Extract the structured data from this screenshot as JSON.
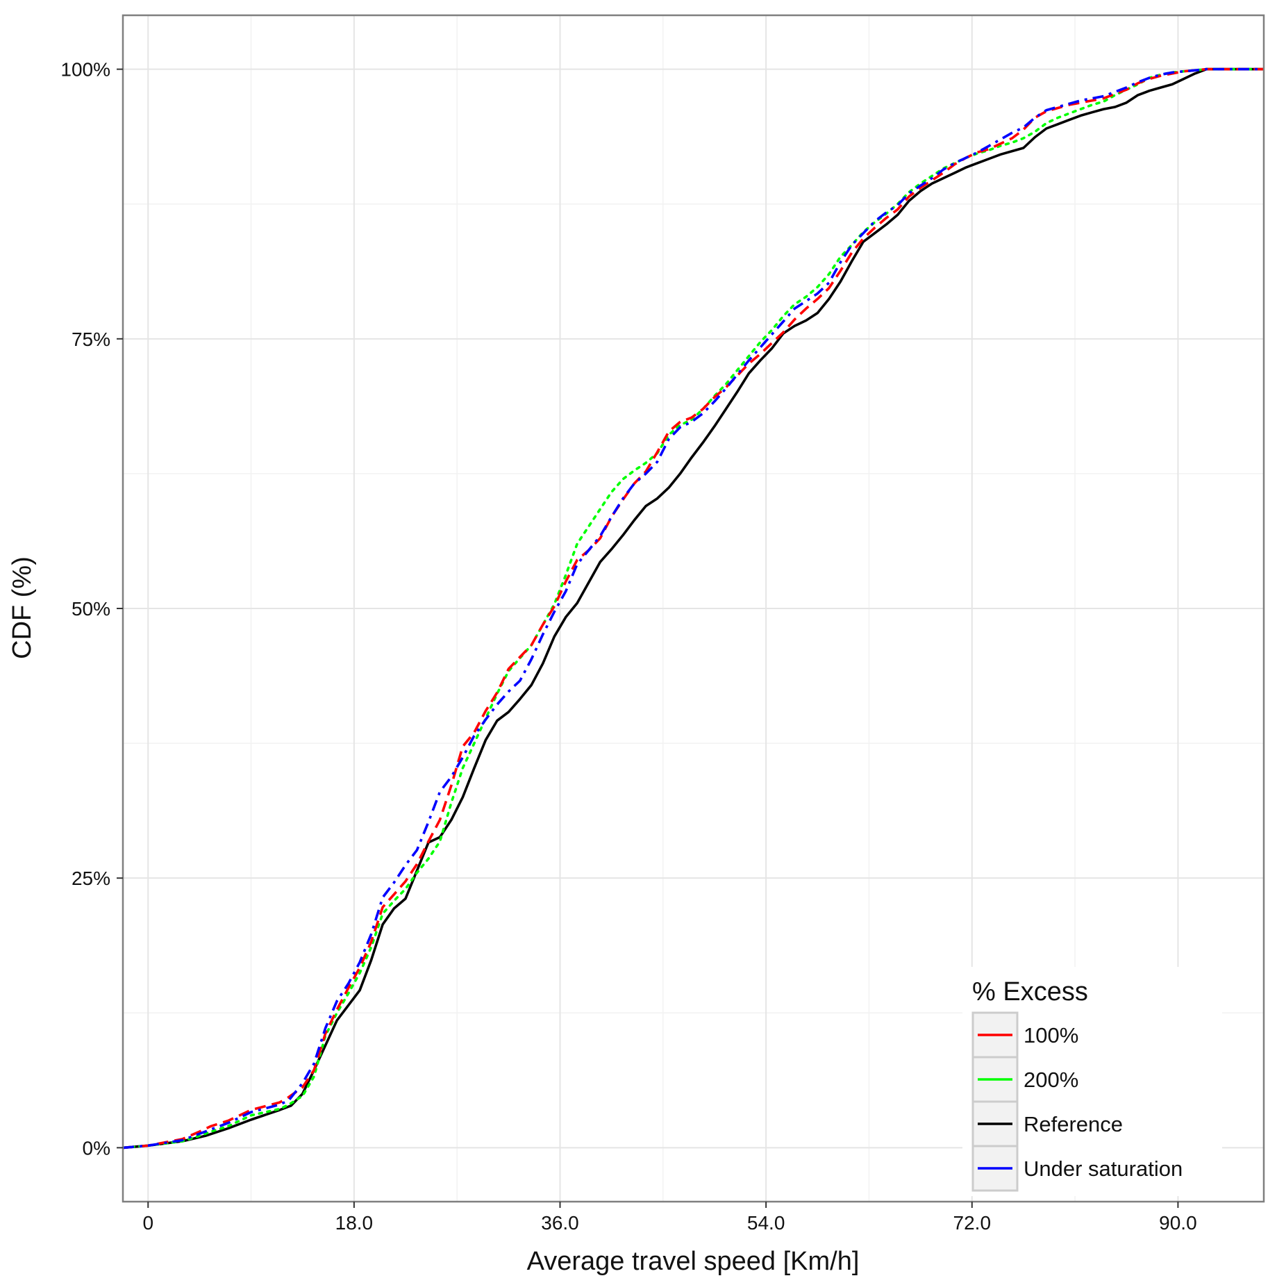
{
  "chart_data": {
    "type": "line",
    "xlabel": "Average travel speed [Km/h]",
    "ylabel": "CDF (%)",
    "xlim": [
      -2.2,
      97.5
    ],
    "ylim": [
      -5,
      105
    ],
    "x_ticks": [
      0,
      18,
      36,
      54,
      72,
      90
    ],
    "x_tick_labels": [
      "0",
      "18.0",
      "36.0",
      "54.0",
      "72.0",
      "90.0"
    ],
    "y_ticks": [
      0,
      25,
      50,
      75,
      100
    ],
    "y_tick_labels": [
      "0%",
      "25%",
      "50%",
      "75%",
      "100%"
    ],
    "grid": true,
    "legend": {
      "title": "% Excess",
      "position": "bottom-right"
    },
    "series": [
      {
        "name": "100%",
        "color": "#ff0000",
        "dash": "dashed",
        "x": [
          -2.2,
          0,
          3,
          4.5,
          5.5,
          7,
          9,
          11.5,
          12.3,
          13.5,
          14.5,
          15.5,
          16.5,
          17.5,
          18.5,
          19.5,
          20.5,
          21.5,
          22.5,
          23.5,
          24.5,
          25.5,
          26.5,
          27.5,
          28.5,
          29.5,
          30.5,
          31.5,
          32.5,
          33.5,
          34.5,
          35.5,
          36.5,
          37.5,
          38.5,
          39.5,
          40.5,
          41.5,
          42.5,
          43.5,
          44.5,
          45.5,
          46.5,
          47.5,
          48.5,
          49.5,
          50.5,
          51.5,
          52.5,
          53.5,
          54.5,
          55.5,
          56.5,
          57.5,
          58.5,
          59.5,
          60.5,
          61.5,
          62.5,
          63.5,
          64.5,
          65.5,
          66.5,
          67.5,
          68.5,
          69.5,
          70.5,
          71.5,
          72.5,
          73.5,
          74.5,
          75.5,
          76.5,
          77.5,
          78.5,
          79.5,
          80.5,
          81.5,
          82.5,
          83.5,
          84.5,
          85.5,
          86.5,
          87.5,
          88.5,
          89.5,
          90.5,
          91.5,
          92.5,
          97.5
        ],
        "y": [
          0,
          0.2,
          0.8,
          1.5,
          2,
          2.5,
          3.5,
          4.2,
          4.7,
          5.6,
          7.2,
          10.6,
          12.8,
          14.8,
          16.7,
          19.1,
          22.3,
          23.5,
          24.7,
          26.3,
          28.4,
          30.4,
          33.6,
          37.2,
          38.5,
          40.5,
          42.2,
          44.4,
          45.5,
          46.6,
          48.5,
          50.2,
          52.5,
          54.5,
          55.4,
          56.5,
          58.5,
          60.1,
          61.6,
          62.7,
          64.5,
          66.4,
          67.3,
          67.7,
          68.5,
          69.6,
          70.5,
          71.6,
          72.7,
          73.6,
          74.6,
          75.6,
          76.8,
          77.8,
          78.7,
          79.7,
          81.3,
          83,
          84.3,
          85.3,
          86.2,
          87,
          88.2,
          89,
          89.7,
          90.4,
          91.2,
          91.8,
          92.3,
          92.6,
          93.1,
          93.6,
          94.4,
          95.5,
          96.1,
          96.4,
          96.7,
          96.9,
          97.1,
          97.3,
          97.7,
          98.1,
          98.7,
          99.1,
          99.4,
          99.6,
          99.8,
          99.9,
          100,
          100
        ]
      },
      {
        "name": "200%",
        "color": "#00ff00",
        "dash": "dotted",
        "x": [
          -2.2,
          0,
          3,
          4.5,
          5.5,
          7,
          9,
          11.5,
          12.3,
          13.5,
          14.5,
          15.5,
          16.5,
          17.5,
          18.5,
          19.5,
          20.5,
          21.5,
          22.5,
          23.5,
          24.5,
          25.5,
          26.5,
          27.5,
          28.5,
          29.5,
          30.5,
          31.5,
          32.5,
          33.5,
          34.5,
          35.5,
          36.5,
          37.5,
          38.5,
          39.5,
          40.5,
          41.5,
          42.5,
          43.5,
          44.5,
          45.5,
          46.5,
          47.5,
          48.5,
          49.5,
          50.5,
          51.5,
          52.5,
          53.5,
          54.5,
          55.5,
          56.5,
          57.5,
          58.5,
          59.5,
          60.5,
          61.5,
          62.5,
          63.5,
          64.5,
          65.5,
          66.5,
          67.5,
          68.5,
          69.5,
          70.5,
          71.5,
          72.5,
          73.5,
          74.5,
          75.5,
          76.5,
          77.5,
          78.5,
          79.5,
          80.5,
          81.5,
          82.5,
          83.5,
          84.5,
          85.5,
          86.5,
          87.5,
          88.5,
          89.5,
          90.5,
          91.5,
          92.5,
          97.5
        ],
        "y": [
          0,
          0.2,
          0.6,
          1.1,
          1.5,
          2,
          3,
          3.6,
          4,
          4.8,
          6.6,
          10.4,
          12.5,
          14.3,
          16.2,
          18.6,
          21.7,
          22.9,
          24,
          25.5,
          26.8,
          28.4,
          32,
          35.2,
          37.5,
          39.8,
          42.1,
          44.2,
          45.4,
          46.6,
          48.5,
          50.4,
          53.1,
          56,
          57.6,
          59.2,
          60.8,
          62,
          62.8,
          63.5,
          64.4,
          66.1,
          67,
          67.5,
          68.5,
          69.7,
          70.8,
          72.1,
          73.4,
          74.7,
          75.8,
          77.1,
          78.2,
          78.9,
          79.8,
          81,
          82.6,
          83.7,
          84.9,
          85.8,
          86.6,
          87.5,
          88.6,
          89.4,
          90.1,
          90.8,
          91.3,
          91.8,
          92.2,
          92.5,
          92.9,
          93.2,
          93.6,
          94.2,
          95,
          95.5,
          95.9,
          96.3,
          96.7,
          97,
          97.6,
          98.1,
          98.6,
          99.2,
          99.5,
          99.7,
          99.8,
          99.9,
          100,
          100
        ]
      },
      {
        "name": "Reference",
        "color": "#000000",
        "dash": "solid",
        "x": [
          -2.2,
          0,
          3,
          5,
          7,
          9,
          11.5,
          12.5,
          13.5,
          14.5,
          15.5,
          16.5,
          17.5,
          18.5,
          19.5,
          20.5,
          21.5,
          22.5,
          23.5,
          24.5,
          25.5,
          26.5,
          27.5,
          28.5,
          29.5,
          30.5,
          31.5,
          32.5,
          33.5,
          34.5,
          35.5,
          36.5,
          37.5,
          38.5,
          39.5,
          40.5,
          41.5,
          42.5,
          43.5,
          44.5,
          45.5,
          46.5,
          47.5,
          48.5,
          49.5,
          50.5,
          51.5,
          52.5,
          53.5,
          54.5,
          55.5,
          56.5,
          57.5,
          58.5,
          59.5,
          60.5,
          61.5,
          62.5,
          63.5,
          64.5,
          65.5,
          66.5,
          67.5,
          68.5,
          69.5,
          70.5,
          71.5,
          72.5,
          73.5,
          74.5,
          75.5,
          76.5,
          77.5,
          78.5,
          79.5,
          80.5,
          81.5,
          82.5,
          83.5,
          84.5,
          85.5,
          86.5,
          87.5,
          88.5,
          89.5,
          90.5,
          91.5,
          92.5,
          97.5
        ],
        "y": [
          0,
          0.2,
          0.6,
          1.1,
          1.8,
          2.6,
          3.5,
          3.9,
          5,
          7.2,
          9.5,
          11.8,
          13.2,
          14.6,
          17.4,
          20.7,
          22.2,
          23.1,
          25.7,
          28.3,
          28.8,
          30.4,
          32.5,
          35.2,
          37.8,
          39.6,
          40.4,
          41.6,
          42.9,
          44.9,
          47.4,
          49.2,
          50.5,
          52.4,
          54.3,
          55.5,
          56.8,
          58.2,
          59.5,
          60.2,
          61.2,
          62.5,
          64,
          65.4,
          66.9,
          68.5,
          70.1,
          71.8,
          73,
          74.1,
          75.5,
          76.2,
          76.7,
          77.4,
          78.7,
          80.3,
          82.2,
          84,
          84.8,
          85.6,
          86.5,
          87.8,
          88.7,
          89.4,
          89.9,
          90.4,
          90.9,
          91.3,
          91.7,
          92.1,
          92.4,
          92.7,
          93.7,
          94.5,
          94.9,
          95.3,
          95.7,
          96,
          96.3,
          96.5,
          96.9,
          97.6,
          98,
          98.3,
          98.6,
          99.1,
          99.6,
          100,
          100
        ]
      },
      {
        "name": "Under saturation",
        "color": "#0000ff",
        "dash": "dashdot",
        "x": [
          -2.2,
          0,
          3,
          4.5,
          5.5,
          7,
          9,
          11.5,
          12.3,
          13.5,
          14.5,
          15.5,
          16.5,
          17.5,
          18.5,
          19.5,
          20.5,
          21.5,
          22.5,
          23.5,
          24.5,
          25.5,
          26.5,
          27.5,
          28.5,
          29.5,
          30.5,
          31.5,
          32.5,
          33.5,
          34.5,
          35.5,
          36.5,
          37.5,
          38.5,
          39.5,
          40.5,
          41.5,
          42.5,
          43.5,
          44.5,
          45.5,
          46.5,
          47.5,
          48.5,
          49.5,
          50.5,
          51.5,
          52.5,
          53.5,
          54.5,
          55.5,
          56.5,
          57.5,
          58.5,
          59.5,
          60.5,
          61.5,
          62.5,
          63.5,
          64.5,
          65.5,
          66.5,
          67.5,
          68.5,
          69.5,
          70.5,
          71.5,
          72.5,
          73.5,
          74.5,
          75.5,
          76.5,
          77.5,
          78.5,
          79.5,
          80.5,
          81.5,
          82.5,
          83.5,
          84.5,
          85.5,
          86.5,
          87.5,
          88.5,
          89.5,
          90.5,
          91.5,
          92.5,
          97.5
        ],
        "y": [
          0,
          0.2,
          0.7,
          1.3,
          1.7,
          2.3,
          3.3,
          4,
          4.4,
          6,
          7.8,
          11.1,
          13.6,
          15.2,
          17.2,
          19.8,
          23.2,
          24.6,
          26.2,
          27.6,
          30.2,
          33,
          34.4,
          36.2,
          38.2,
          39.7,
          41.1,
          42.3,
          43.3,
          45.3,
          47.6,
          49.7,
          51.6,
          54.1,
          55.4,
          56.7,
          58.5,
          60.2,
          61.6,
          62.5,
          63.6,
          65.7,
          66.8,
          67.3,
          68.1,
          69.2,
          70.4,
          71.7,
          73,
          74.2,
          75.4,
          76.6,
          77.8,
          78.5,
          79.2,
          80.2,
          82.1,
          83.7,
          84.8,
          85.9,
          86.7,
          87.4,
          88.5,
          89.2,
          89.9,
          90.7,
          91.3,
          91.8,
          92.3,
          92.9,
          93.5,
          94.1,
          94.6,
          95.5,
          96.2,
          96.5,
          96.8,
          97.1,
          97.3,
          97.5,
          97.9,
          98.3,
          98.8,
          99.2,
          99.5,
          99.7,
          99.8,
          99.9,
          100,
          100
        ]
      }
    ]
  }
}
